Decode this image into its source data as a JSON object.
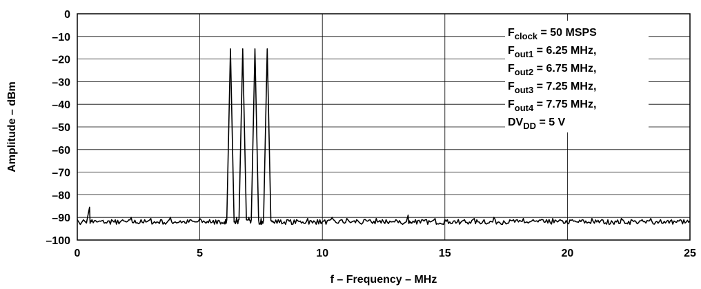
{
  "chart_data": {
    "type": "line",
    "xlabel": "f – Frequency – MHz",
    "ylabel": "Amplitude – dBm",
    "xlim": [
      0,
      25
    ],
    "ylim": [
      -100,
      0
    ],
    "x_ticks": [
      "0",
      "5",
      "10",
      "15",
      "20",
      "25"
    ],
    "y_ticks": [
      "0",
      "–10",
      "–20",
      "–30",
      "–40",
      "–50",
      "–60",
      "–70",
      "–80",
      "–90",
      "–100"
    ],
    "grid": true,
    "annotation_lines": [
      {
        "main": "F",
        "sub": "clock",
        "rest": " = 50 MSPS"
      },
      {
        "main": "F",
        "sub": "out1",
        "rest": " = 6.25 MHz,"
      },
      {
        "main": "F",
        "sub": "out2",
        "rest": " = 6.75 MHz,"
      },
      {
        "main": "F",
        "sub": "out3",
        "rest": " = 7.25 MHz,"
      },
      {
        "main": "F",
        "sub": "out4",
        "rest": " = 7.75 MHz,"
      },
      {
        "main": "DV",
        "sub": "DD",
        "rest": " = 5 V"
      }
    ],
    "noise_floor_dbm": -92,
    "peaks": [
      {
        "x": 0.5,
        "y": -85.5
      },
      {
        "x": 6.25,
        "y": -15.5
      },
      {
        "x": 6.75,
        "y": -15.5
      },
      {
        "x": 7.25,
        "y": -15.5
      },
      {
        "x": 7.75,
        "y": -15.5
      },
      {
        "x": 13.5,
        "y": -89
      }
    ],
    "series": [
      {
        "values_x": [
          0.0,
          0.5,
          0.6,
          0.8,
          1.0,
          1.2,
          1.4,
          1.6,
          1.8,
          2.0,
          2.2,
          2.4,
          2.6,
          2.8,
          3.0,
          3.2,
          3.4,
          3.6,
          3.8,
          4.0,
          4.2,
          4.4,
          4.6,
          4.8,
          5.0,
          5.2,
          5.4,
          5.6,
          5.8,
          6.0,
          6.1,
          6.25,
          6.4,
          6.5,
          6.6,
          6.75,
          6.9,
          7.0,
          7.1,
          7.25,
          7.4,
          7.5,
          7.6,
          7.75,
          7.9,
          8.0,
          8.2,
          8.4,
          8.6,
          8.8,
          9.0,
          9.2,
          9.4,
          9.6,
          9.8,
          10.0,
          10.2,
          10.4,
          10.6,
          10.8,
          11.0,
          11.2,
          11.4,
          11.6,
          11.8,
          12.0,
          12.2,
          12.4,
          12.6,
          12.8,
          13.0,
          13.2,
          13.5,
          13.6,
          13.8,
          14.0,
          14.2,
          14.4,
          14.6,
          14.8,
          15.0,
          15.2,
          15.4,
          15.6,
          15.8,
          16.0,
          16.2,
          16.4,
          16.6,
          16.8,
          17.0,
          17.2,
          17.4,
          17.6,
          17.8,
          18.0,
          18.2,
          18.4,
          18.6,
          18.8,
          19.0,
          19.2,
          19.4,
          19.6,
          19.8,
          20.0,
          20.2,
          20.4,
          20.6,
          20.8,
          21.0,
          21.2,
          21.4,
          21.6,
          21.8,
          22.0,
          22.2,
          22.4,
          22.6,
          22.8,
          23.0,
          23.2,
          23.4,
          23.6,
          23.8,
          24.0,
          24.2,
          24.4,
          24.6,
          24.8,
          25.0
        ],
        "values": [
          -91,
          -85.5,
          -91,
          -92,
          -91.5,
          -92.5,
          -91,
          -93,
          -91.5,
          -92,
          -90,
          -92.5,
          -91,
          -92,
          -90.5,
          -92.5,
          -91,
          -93,
          -90,
          -92,
          -91.5,
          -92.5,
          -91,
          -92,
          -90.5,
          -92,
          -91,
          -93,
          -91.5,
          -92,
          -91,
          -15.5,
          -92,
          -90,
          -91,
          -15.5,
          -91,
          -90,
          -91,
          -15.5,
          -91,
          -90.5,
          -91,
          -15.5,
          -91.5,
          -92,
          -91,
          -92.5,
          -91,
          -93,
          -91.5,
          -92,
          -90.5,
          -92.5,
          -91,
          -92,
          -91.5,
          -90,
          -92.5,
          -91,
          -90.5,
          -92,
          -91,
          -93,
          -91.5,
          -92,
          -90.5,
          -92.5,
          -91,
          -92,
          -91,
          -92.5,
          -89,
          -92,
          -91,
          -92.5,
          -91,
          -92,
          -90.5,
          -92.5,
          -91,
          -92,
          -91.5,
          -93,
          -91,
          -92,
          -90.5,
          -92,
          -91,
          -92.5,
          -90,
          -92,
          -91.5,
          -92.5,
          -91,
          -92,
          -90.5,
          -92.5,
          -91,
          -92,
          -91,
          -92.5,
          -90.5,
          -92,
          -91.5,
          -92.5,
          -91,
          -92,
          -91,
          -92.5,
          -90.5,
          -92,
          -91,
          -93,
          -91.5,
          -92,
          -90.5,
          -92.5,
          -91,
          -92,
          -91.5,
          -92.5,
          -90.5,
          -92,
          -91,
          -92.5,
          -91.5,
          -92,
          -91,
          -92.5,
          -91.5
        ]
      }
    ]
  }
}
